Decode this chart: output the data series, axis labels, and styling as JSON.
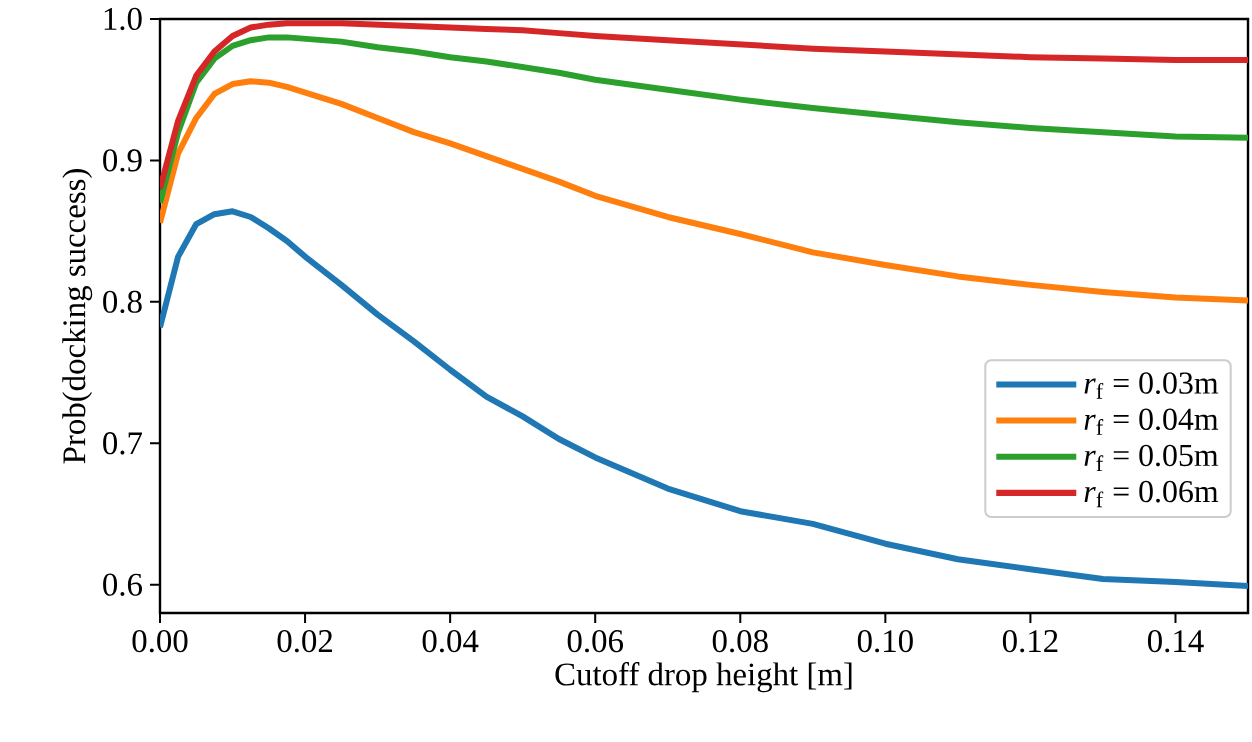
{
  "chart_data": {
    "type": "line",
    "xlabel": "Cutoff drop height [m]",
    "ylabel": "Prob(docking success)",
    "x": [
      0,
      0.0025,
      0.005,
      0.0075,
      0.01,
      0.0125,
      0.015,
      0.0175,
      0.02,
      0.025,
      0.03,
      0.035,
      0.04,
      0.045,
      0.05,
      0.055,
      0.06,
      0.07,
      0.08,
      0.09,
      0.1,
      0.11,
      0.12,
      0.13,
      0.14,
      0.15
    ],
    "series": [
      {
        "name": "*r*$_{f}$ = 0.03m",
        "color": "#1f77b4",
        "values": [
          0.782,
          0.832,
          0.855,
          0.862,
          0.864,
          0.86,
          0.852,
          0.843,
          0.832,
          0.812,
          0.791,
          0.772,
          0.752,
          0.733,
          0.719,
          0.703,
          0.69,
          0.668,
          0.652,
          0.643,
          0.629,
          0.618,
          0.611,
          0.604,
          0.602,
          0.599
        ]
      },
      {
        "name": "*r*$_{f}$ = 0.04m",
        "color": "#ff7f0e",
        "values": [
          0.856,
          0.905,
          0.93,
          0.947,
          0.954,
          0.956,
          0.955,
          0.952,
          0.948,
          0.94,
          0.93,
          0.92,
          0.912,
          0.903,
          0.894,
          0.885,
          0.875,
          0.86,
          0.848,
          0.835,
          0.826,
          0.818,
          0.812,
          0.807,
          0.803,
          0.801
        ]
      },
      {
        "name": "*r*$_{f}$ = 0.05m",
        "color": "#2ca02c",
        "values": [
          0.87,
          0.92,
          0.955,
          0.972,
          0.981,
          0.985,
          0.987,
          0.987,
          0.986,
          0.984,
          0.98,
          0.977,
          0.973,
          0.97,
          0.966,
          0.962,
          0.957,
          0.95,
          0.943,
          0.937,
          0.932,
          0.927,
          0.923,
          0.92,
          0.917,
          0.916
        ]
      },
      {
        "name": "*r*$_{f}$ = 0.06m",
        "color": "#d62728",
        "values": [
          0.88,
          0.928,
          0.96,
          0.977,
          0.988,
          0.994,
          0.996,
          0.997,
          0.997,
          0.997,
          0.996,
          0.995,
          0.994,
          0.993,
          0.992,
          0.99,
          0.988,
          0.985,
          0.982,
          0.979,
          0.977,
          0.975,
          0.973,
          0.972,
          0.971,
          0.971
        ]
      }
    ],
    "xlim": [
      0,
      0.15
    ],
    "ylim": [
      0.58,
      1.0
    ],
    "xticks": [
      {
        "value": 0,
        "label": "0.00"
      },
      {
        "value": 0.02,
        "label": "0.02"
      },
      {
        "value": 0.04,
        "label": "0.04"
      },
      {
        "value": 0.06,
        "label": "0.06"
      },
      {
        "value": 0.08,
        "label": "0.08"
      },
      {
        "value": 0.1,
        "label": "0.10"
      },
      {
        "value": 0.12,
        "label": "0.12"
      },
      {
        "value": 0.14,
        "label": "0.14"
      }
    ],
    "yticks": [
      {
        "value": 0.6,
        "label": "0.6"
      },
      {
        "value": 0.7,
        "label": "0.7"
      },
      {
        "value": 0.8,
        "label": "0.8"
      },
      {
        "value": 0.9,
        "label": "0.9"
      },
      {
        "value": 1.0,
        "label": "1.0"
      }
    ],
    "legend": "bottom right"
  }
}
